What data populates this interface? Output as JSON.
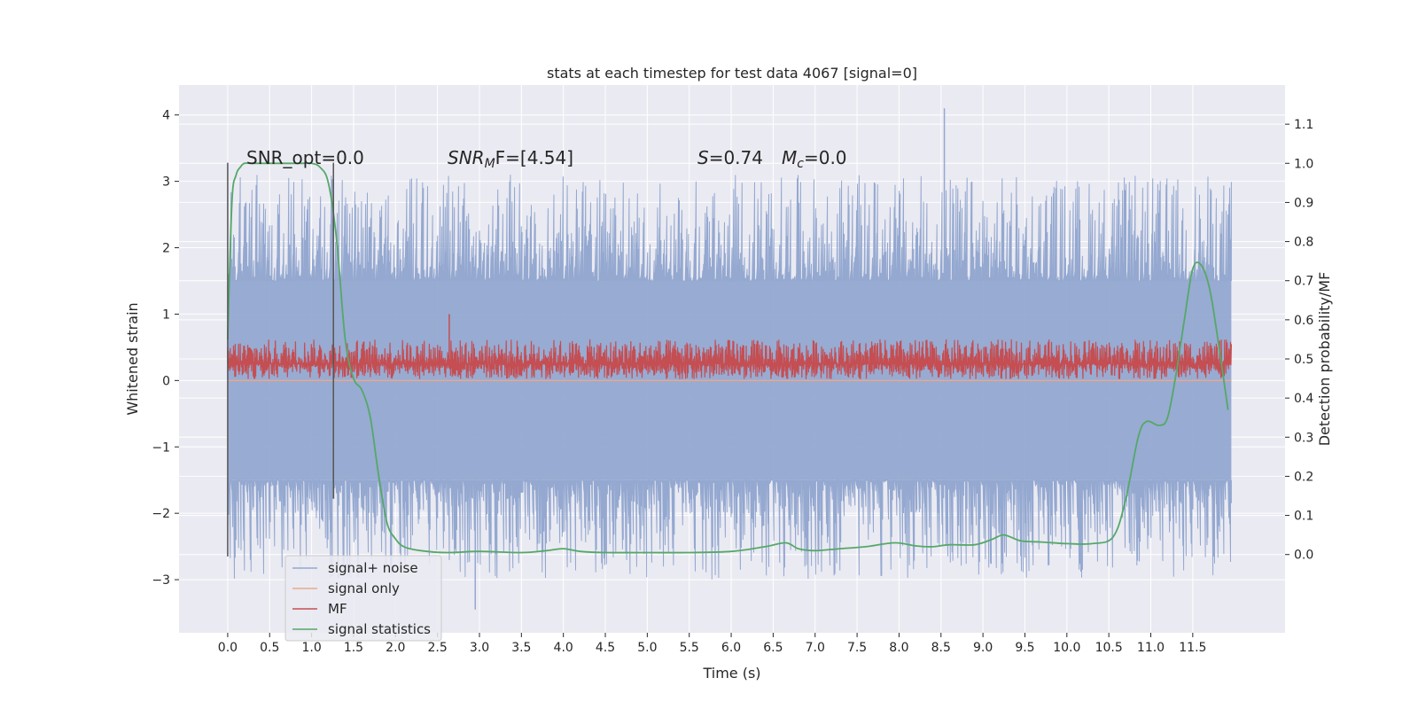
{
  "chart_data": {
    "type": "line",
    "title": "stats at each timestep for test data 4067 [signal=0]",
    "xlabel": "Time (s)",
    "ylabel": "Whitened strain",
    "y2label": "Detection probability/MF",
    "xlim": [
      -0.58,
      12.6
    ],
    "ylim": [
      -3.8,
      4.45
    ],
    "y2lim": [
      -0.2,
      1.2
    ],
    "xticks": [
      0.0,
      0.5,
      1.0,
      1.5,
      2.0,
      2.5,
      3.0,
      3.5,
      4.0,
      4.5,
      5.0,
      5.5,
      6.0,
      6.5,
      7.0,
      7.5,
      8.0,
      8.5,
      9.0,
      9.5,
      10.0,
      10.5,
      11.0,
      11.5
    ],
    "xtick_labels": [
      "0.0",
      "0.5",
      "1.0",
      "1.5",
      "2.0",
      "2.5",
      "3.0",
      "3.5",
      "4.0",
      "4.5",
      "5.0",
      "5.5",
      "6.0",
      "6.5",
      "7.0",
      "7.5",
      "8.0",
      "8.5",
      "9.0",
      "9.5",
      "10.0",
      "10.5",
      "11.0",
      "11.5"
    ],
    "yticks": [
      4,
      3,
      2,
      1,
      0,
      -1,
      -2,
      -3
    ],
    "ytick_labels": [
      "4",
      "3",
      "2",
      "1",
      "0",
      "−1",
      "−2",
      "−3"
    ],
    "y2ticks": [
      1.1,
      1.0,
      0.9,
      0.8,
      0.7,
      0.6,
      0.5,
      0.4,
      0.3,
      0.2,
      0.1,
      0.0
    ],
    "y2tick_labels": [
      "1.1",
      "1.0",
      "0.9",
      "0.8",
      "0.7",
      "0.6",
      "0.5",
      "0.4",
      "0.3",
      "0.2",
      "0.1",
      "0.0"
    ],
    "grid": true,
    "legend_position": "lower-left",
    "annotations": {
      "snr_opt": "SNR_opt=0.0",
      "snr_mf_main": "SNR",
      "snr_mf_sub": "M",
      "snr_mf_rest": "F=[4.54]",
      "s_symbol": "S",
      "s_value": "=0.74",
      "mc_symbol": "M",
      "mc_sub": "c",
      "mc_value": "=0.0"
    },
    "vlines": [
      {
        "x": 0.0,
        "ymin": -2.65,
        "ymax": 3.28
      },
      {
        "x": 1.26,
        "ymin": -1.78,
        "ymax": 3.28
      }
    ],
    "series": [
      {
        "name": "signal+ noise",
        "color": "#94a8d0",
        "axis": "left",
        "x_range": [
          0.0,
          11.96
        ],
        "envelope": {
          "band_high": 1.5,
          "band_low": -1.5,
          "max_peak": 4.1,
          "min_peak": -3.45
        }
      },
      {
        "name": "signal only",
        "color": "#e8a98c",
        "axis": "left",
        "x": [
          0.0,
          11.96
        ],
        "y": [
          0.0,
          0.0
        ]
      },
      {
        "name": "MF",
        "color": "#c44e52",
        "axis": "left",
        "x_range": [
          0.0,
          11.96
        ],
        "envelope": {
          "base": 0.25,
          "band_high": 0.62,
          "band_low": 0.02,
          "max_peak": 1.0
        }
      },
      {
        "name": "signal statistics",
        "color": "#55a868",
        "axis": "right",
        "x": [
          0.0,
          0.05,
          0.1,
          0.15,
          0.2,
          0.3,
          0.5,
          0.7,
          0.9,
          1.0,
          1.1,
          1.2,
          1.3,
          1.4,
          1.5,
          1.6,
          1.7,
          1.8,
          1.9,
          2.0,
          2.1,
          2.3,
          2.6,
          3.0,
          3.5,
          3.8,
          4.0,
          4.2,
          4.5,
          5.0,
          5.5,
          6.0,
          6.4,
          6.65,
          6.8,
          7.0,
          7.3,
          7.6,
          7.95,
          8.2,
          8.4,
          8.6,
          8.9,
          9.1,
          9.25,
          9.45,
          9.7,
          10.0,
          10.3,
          10.55,
          10.7,
          10.85,
          10.95,
          11.1,
          11.2,
          11.3,
          11.4,
          11.5,
          11.6,
          11.7,
          11.8,
          11.92
        ],
        "y": [
          0.55,
          0.9,
          0.97,
          0.99,
          1.0,
          1.0,
          1.0,
          1.0,
          1.0,
          1.0,
          0.99,
          0.95,
          0.8,
          0.55,
          0.45,
          0.42,
          0.35,
          0.2,
          0.08,
          0.04,
          0.02,
          0.01,
          0.005,
          0.008,
          0.005,
          0.01,
          0.015,
          0.008,
          0.005,
          0.005,
          0.005,
          0.008,
          0.02,
          0.03,
          0.015,
          0.01,
          0.015,
          0.02,
          0.03,
          0.022,
          0.02,
          0.025,
          0.025,
          0.038,
          0.05,
          0.035,
          0.032,
          0.028,
          0.028,
          0.045,
          0.14,
          0.3,
          0.34,
          0.33,
          0.35,
          0.46,
          0.6,
          0.73,
          0.74,
          0.68,
          0.55,
          0.37
        ]
      }
    ]
  }
}
